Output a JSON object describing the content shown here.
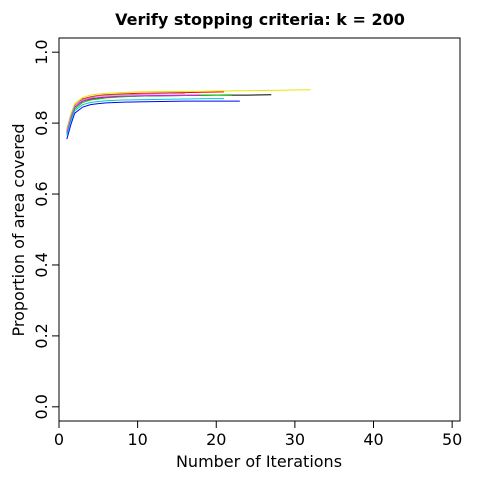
{
  "chart_data": {
    "type": "line",
    "title": "Verify stopping criteria: k = 200",
    "xlabel": "Number of Iterations",
    "ylabel": "Proportion of area covered",
    "xlim": [
      0,
      51
    ],
    "ylim": [
      -0.04,
      1.04
    ],
    "xticks": [
      "0",
      "10",
      "20",
      "30",
      "40",
      "50"
    ],
    "yticks": [
      "0.0",
      "0.2",
      "0.4",
      "0.6",
      "0.8",
      "1.0"
    ],
    "grid": false,
    "series": [
      {
        "color": "#000000",
        "x": [
          1,
          1.5,
          2,
          3,
          4,
          5,
          6,
          8,
          10,
          13,
          16,
          20,
          24,
          27
        ],
        "y": [
          0.77,
          0.81,
          0.845,
          0.862,
          0.868,
          0.871,
          0.873,
          0.875,
          0.876,
          0.877,
          0.878,
          0.879,
          0.879,
          0.88
        ]
      },
      {
        "color": "#ff0000",
        "x": [
          1,
          1.5,
          2,
          3,
          4,
          5,
          6,
          8,
          10,
          13,
          16,
          21
        ],
        "y": [
          0.78,
          0.82,
          0.85,
          0.868,
          0.874,
          0.878,
          0.88,
          0.882,
          0.884,
          0.885,
          0.886,
          0.888
        ]
      },
      {
        "color": "#00cd00",
        "x": [
          1,
          1.5,
          2,
          3,
          4,
          5,
          6,
          8,
          10,
          13,
          16,
          19,
          22
        ],
        "y": [
          0.77,
          0.81,
          0.84,
          0.858,
          0.865,
          0.868,
          0.871,
          0.874,
          0.876,
          0.877,
          0.878,
          0.879,
          0.88
        ]
      },
      {
        "color": "#0000ff",
        "x": [
          1,
          1.5,
          2,
          3,
          4,
          5,
          6,
          8,
          10,
          13,
          16,
          20,
          23
        ],
        "y": [
          0.755,
          0.795,
          0.828,
          0.845,
          0.852,
          0.855,
          0.857,
          0.859,
          0.86,
          0.861,
          0.862,
          0.862,
          0.862
        ]
      },
      {
        "color": "#00cdcd",
        "x": [
          1,
          1.5,
          2,
          3,
          4,
          5,
          6,
          8,
          10,
          13,
          16,
          19,
          21
        ],
        "y": [
          0.765,
          0.805,
          0.835,
          0.852,
          0.858,
          0.861,
          0.863,
          0.865,
          0.866,
          0.867,
          0.868,
          0.869,
          0.869
        ]
      },
      {
        "color": "#ff00ff",
        "x": [
          1,
          1.5,
          2,
          3,
          4,
          5,
          6,
          8,
          10,
          13,
          16,
          18
        ],
        "y": [
          0.775,
          0.815,
          0.845,
          0.862,
          0.869,
          0.872,
          0.874,
          0.876,
          0.877,
          0.878,
          0.879,
          0.879
        ]
      },
      {
        "color": "#e6e600",
        "x": [
          1,
          1.5,
          2,
          3,
          4,
          5,
          6,
          8,
          10,
          14,
          18,
          22,
          26,
          29,
          32
        ],
        "y": [
          0.785,
          0.825,
          0.855,
          0.872,
          0.879,
          0.882,
          0.884,
          0.886,
          0.888,
          0.889,
          0.89,
          0.891,
          0.892,
          0.893,
          0.894
        ]
      },
      {
        "color": "#a0a0a0",
        "x": [
          1,
          1.5,
          2,
          3,
          4,
          5,
          6,
          8,
          10,
          12,
          14,
          16
        ],
        "y": [
          0.78,
          0.82,
          0.85,
          0.866,
          0.872,
          0.876,
          0.878,
          0.88,
          0.881,
          0.882,
          0.883,
          0.883
        ]
      }
    ]
  }
}
